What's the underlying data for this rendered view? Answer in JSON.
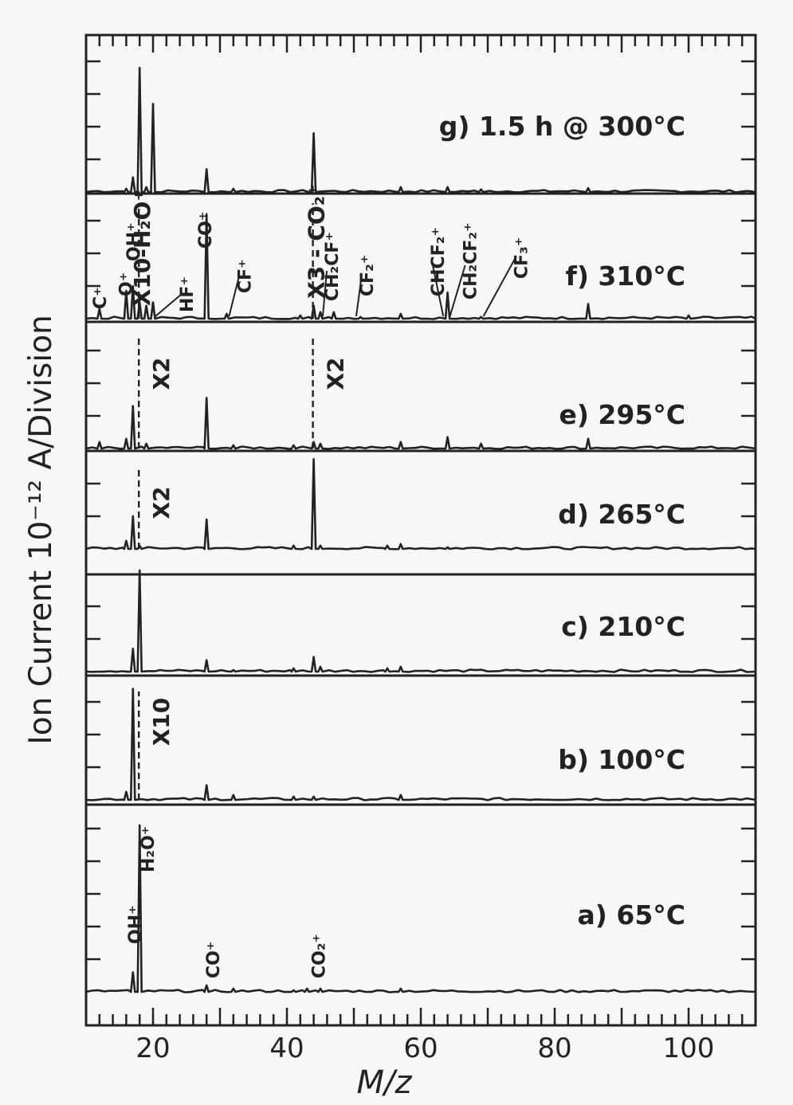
{
  "chart_data": {
    "type": "line",
    "xlabel": "M/z",
    "ylabel": "Ion Current 10⁻¹² A/Division",
    "xlim": [
      10,
      110
    ],
    "x_ticks": [
      "20",
      "40",
      "60",
      "80",
      "100"
    ],
    "grid": false,
    "panels": [
      {
        "label": "g) 1.5 h @ 300°C",
        "peaks": [
          [
            16,
            0.1
          ],
          [
            17,
            0.45
          ],
          [
            18,
            3.8
          ],
          [
            19,
            0.15
          ],
          [
            20,
            2.7
          ],
          [
            28,
            0.7
          ],
          [
            32,
            0.1
          ],
          [
            44,
            1.8
          ],
          [
            57,
            0.15
          ],
          [
            64,
            0.15
          ],
          [
            69,
            0.08
          ],
          [
            85,
            0.12
          ]
        ],
        "multipliers": [],
        "annotations": []
      },
      {
        "label": "f) 310°C",
        "peaks": [
          [
            12,
            0.3
          ],
          [
            16,
            0.85
          ],
          [
            17,
            1.0
          ],
          [
            18,
            0.5
          ],
          [
            19,
            0.4
          ],
          [
            20,
            0.5
          ],
          [
            28,
            3.2
          ],
          [
            31,
            0.15
          ],
          [
            42,
            0.1
          ],
          [
            44,
            0.4
          ],
          [
            45,
            0.2
          ],
          [
            47,
            0.2
          ],
          [
            51,
            0.05
          ],
          [
            57,
            0.15
          ],
          [
            64,
            0.8
          ],
          [
            69,
            0.05
          ],
          [
            85,
            0.45
          ],
          [
            100,
            0.1
          ]
        ],
        "multipliers": [
          {
            "text": "X10-H₂O⁺",
            "m": 18
          },
          {
            "text": "X3 - CO₂⁺",
            "m": 44
          }
        ],
        "annotations": [
          {
            "text": "C⁺",
            "m": 12
          },
          {
            "text": "O⁺",
            "m": 16
          },
          {
            "text": "OH⁺",
            "m": 17
          },
          {
            "text": "HF⁺",
            "m": 20
          },
          {
            "text": "CO⁺",
            "m": 28
          },
          {
            "text": "CF⁺",
            "m": 31
          },
          {
            "text": "CH₂CF⁺",
            "m": 45
          },
          {
            "text": "CF₂⁺",
            "m": 50
          },
          {
            "text": "CHCF₂⁺",
            "m": 63
          },
          {
            "text": "CH₂CF₂⁺",
            "m": 64
          },
          {
            "text": "CF₃⁺",
            "m": 69
          }
        ]
      },
      {
        "label": "e) 295°C",
        "peaks": [
          [
            12,
            0.2
          ],
          [
            16,
            0.3
          ],
          [
            17,
            1.3
          ],
          [
            19,
            0.15
          ],
          [
            28,
            1.55
          ],
          [
            32,
            0.1
          ],
          [
            41,
            0.1
          ],
          [
            44,
            0.2
          ],
          [
            45,
            0.15
          ],
          [
            57,
            0.2
          ],
          [
            64,
            0.35
          ],
          [
            69,
            0.15
          ],
          [
            85,
            0.3
          ]
        ],
        "multipliers": [
          {
            "text": "X2",
            "m": 18
          },
          {
            "text": "X2",
            "m": 44
          }
        ],
        "annotations": []
      },
      {
        "label": "d) 265°C",
        "peaks": [
          [
            16,
            0.25
          ],
          [
            17,
            1.0
          ],
          [
            18,
            0.1
          ],
          [
            28,
            0.9
          ],
          [
            41,
            0.1
          ],
          [
            44,
            2.75
          ],
          [
            45,
            0.1
          ],
          [
            55,
            0.1
          ],
          [
            57,
            0.15
          ],
          [
            64,
            0.05
          ]
        ],
        "multipliers": [
          {
            "text": "X2",
            "m": 18
          }
        ],
        "annotations": []
      },
      {
        "label": "c) 210°C",
        "peaks": [
          [
            17,
            0.7
          ],
          [
            18,
            3.1
          ],
          [
            28,
            0.35
          ],
          [
            32,
            0.05
          ],
          [
            41,
            0.1
          ],
          [
            44,
            0.45
          ],
          [
            45,
            0.15
          ],
          [
            55,
            0.1
          ],
          [
            57,
            0.15
          ]
        ],
        "multipliers": [],
        "annotations": []
      },
      {
        "label": "b) 100°C",
        "peaks": [
          [
            16,
            0.25
          ],
          [
            17,
            3.4
          ],
          [
            28,
            0.45
          ],
          [
            32,
            0.15
          ],
          [
            41,
            0.1
          ],
          [
            44,
            0.1
          ],
          [
            57,
            0.15
          ]
        ],
        "multipliers": [
          {
            "text": "X10",
            "m": 18
          }
        ],
        "annotations": []
      },
      {
        "label": "a) 65°C",
        "peaks": [
          [
            17,
            0.6
          ],
          [
            18,
            5.1
          ],
          [
            28,
            0.2
          ],
          [
            32,
            0.1
          ],
          [
            41,
            0.05
          ],
          [
            43,
            0.1
          ],
          [
            45,
            0.1
          ],
          [
            57,
            0.1
          ]
        ],
        "multipliers": [],
        "annotations": [
          {
            "text": "OH⁺",
            "m": 17
          },
          {
            "text": "H₂O⁺",
            "m": 18
          },
          {
            "text": "CO⁺",
            "m": 28
          },
          {
            "text": "CO₂⁺",
            "m": 44
          }
        ]
      }
    ]
  }
}
